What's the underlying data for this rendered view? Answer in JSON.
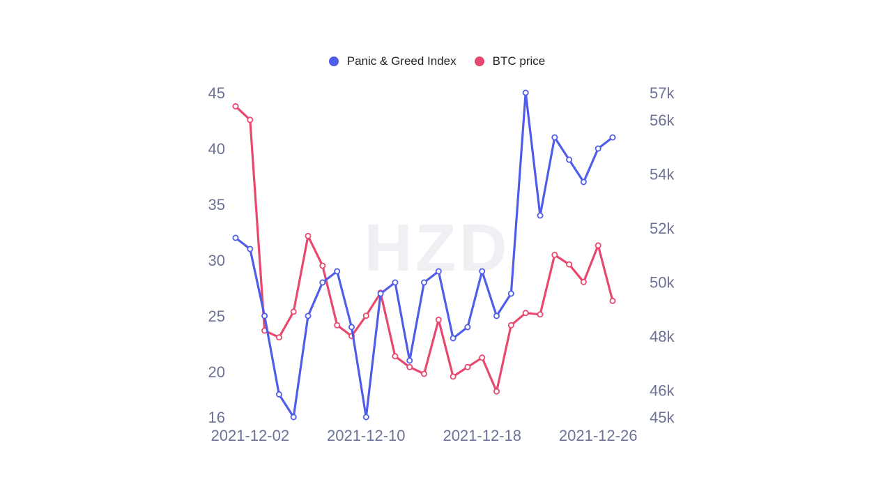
{
  "legend": {
    "items": [
      {
        "label": "Panic & Greed Index",
        "color": "#4f5de8"
      },
      {
        "label": "BTC price",
        "color": "#e8486e"
      }
    ]
  },
  "watermark": "HZD",
  "chart_data": {
    "type": "line",
    "x": [
      "2021-12-01",
      "2021-12-02",
      "2021-12-03",
      "2021-12-04",
      "2021-12-05",
      "2021-12-06",
      "2021-12-07",
      "2021-12-08",
      "2021-12-09",
      "2021-12-10",
      "2021-12-11",
      "2021-12-12",
      "2021-12-13",
      "2021-12-14",
      "2021-12-15",
      "2021-12-16",
      "2021-12-17",
      "2021-12-18",
      "2021-12-19",
      "2021-12-20",
      "2021-12-21",
      "2021-12-22",
      "2021-12-23",
      "2021-12-24",
      "2021-12-25",
      "2021-12-26",
      "2021-12-27"
    ],
    "x_tick_labels": [
      "2021-12-02",
      "2021-12-10",
      "2021-12-18",
      "2021-12-26"
    ],
    "series": [
      {
        "name": "Panic & Greed Index",
        "axis": "left",
        "color": "#4f5de8",
        "values": [
          32,
          31,
          25,
          18,
          16,
          25,
          28,
          29,
          24,
          16,
          27,
          28,
          21,
          28,
          29,
          23,
          24,
          29,
          25,
          27,
          45,
          34,
          41,
          39,
          37,
          40,
          41
        ]
      },
      {
        "name": "BTC price",
        "axis": "right",
        "color": "#e8486e",
        "values": [
          56500,
          56000,
          48200,
          47950,
          48900,
          51700,
          50600,
          48400,
          48000,
          48750,
          49600,
          47250,
          46850,
          46600,
          48600,
          46500,
          46850,
          47200,
          45950,
          48400,
          48850,
          48800,
          51000,
          50650,
          50000,
          51350,
          49300
        ]
      }
    ],
    "y_left": {
      "ticks": [
        16,
        20,
        25,
        30,
        35,
        40,
        45
      ],
      "range": [
        16,
        45
      ]
    },
    "y_right": {
      "ticks": [
        45000,
        46000,
        48000,
        50000,
        52000,
        54000,
        56000,
        57000
      ],
      "tick_labels": [
        "45k",
        "46k",
        "48k",
        "50k",
        "52k",
        "54k",
        "56k",
        "57k"
      ],
      "range": [
        45000,
        57000
      ]
    },
    "grid": false,
    "legend_position": "top-center"
  }
}
